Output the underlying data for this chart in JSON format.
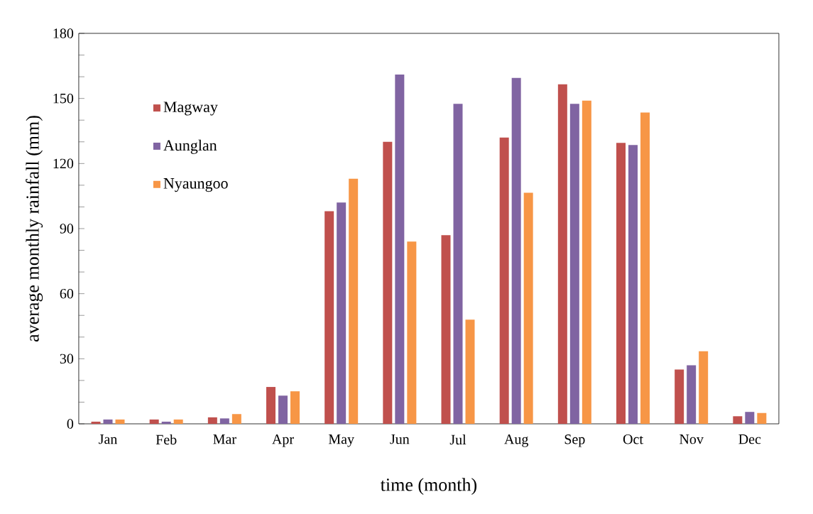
{
  "chart_data": {
    "type": "bar",
    "xlabel": "time (month)",
    "ylabel": "average monthly rainfall (mm)",
    "categories": [
      "Jan",
      "Feb",
      "Mar",
      "Apr",
      "May",
      "Jun",
      "Jul",
      "Aug",
      "Sep",
      "Oct",
      "Nov",
      "Dec"
    ],
    "series": [
      {
        "name": "Magway",
        "color": "#c0504d",
        "values": [
          1,
          2,
          3,
          17,
          98,
          130,
          87,
          132,
          156.5,
          129.5,
          25,
          3.5
        ]
      },
      {
        "name": "Aunglan",
        "color": "#8064a2",
        "values": [
          2,
          1,
          2.5,
          13,
          102,
          161,
          147.5,
          159.5,
          147.5,
          128.5,
          27,
          5.5
        ]
      },
      {
        "name": "Nyaungoo",
        "color": "#f79646",
        "values": [
          2,
          2,
          4.5,
          15,
          113,
          84,
          48,
          106.5,
          149,
          143.5,
          33.5,
          5
        ]
      }
    ],
    "ylim": [
      0,
      180
    ],
    "yticks": [
      0,
      {
        "value": 10,
        "label": null
      },
      {
        "value": 20,
        "label": null
      },
      30,
      {
        "value": 40,
        "label": null
      },
      {
        "value": 50,
        "label": null
      },
      60,
      {
        "value": 70,
        "label": null
      },
      {
        "value": 80,
        "label": null
      },
      90,
      {
        "value": 100,
        "label": null
      },
      {
        "value": 110,
        "label": null
      },
      120,
      {
        "value": 130,
        "label": null
      },
      {
        "value": 140,
        "label": null
      },
      150,
      {
        "value": 160,
        "label": null
      },
      {
        "value": 170,
        "label": null
      },
      180
    ],
    "grid": false,
    "legend": "top left"
  }
}
